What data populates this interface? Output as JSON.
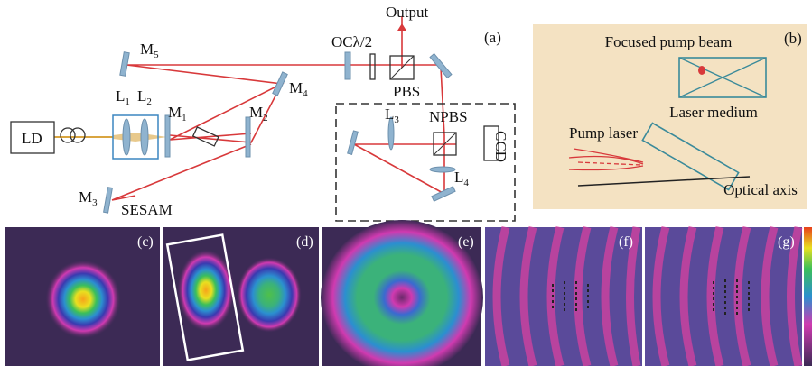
{
  "panel_a": {
    "tag": "(a)",
    "output": "Output",
    "oc_hwp": "OCλ/2",
    "pbs": "PBS",
    "npbs": "NPBS",
    "ccd": "CCD",
    "ld": "LD",
    "sesam": "SESAM",
    "mirrors": [
      {
        "text": "M",
        "sub": "1"
      },
      {
        "text": "M",
        "sub": "2"
      },
      {
        "text": "M",
        "sub": "3"
      },
      {
        "text": "M",
        "sub": "4"
      },
      {
        "text": "M",
        "sub": "5"
      }
    ],
    "lenses": [
      {
        "text": "L",
        "sub": "1"
      },
      {
        "text": "L",
        "sub": "2"
      },
      {
        "text": "L",
        "sub": "3"
      },
      {
        "text": "L",
        "sub": "4"
      }
    ]
  },
  "panel_b": {
    "tag": "(b)",
    "focused": "Focused pump beam",
    "medium": "Laser medium",
    "pump": "Pump laser",
    "axis": "Optical axis"
  },
  "profiles": [
    "(c)",
    "(d)",
    "(e)",
    "(f)",
    "(g)"
  ]
}
